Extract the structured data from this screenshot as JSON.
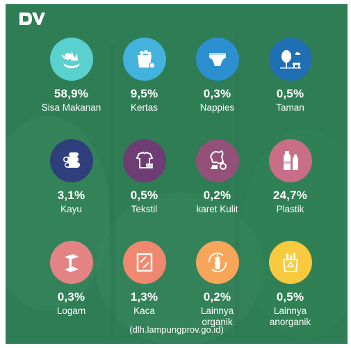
{
  "source_text": "(dlh.lampungprov.go.id)",
  "items": [
    {
      "percent": "58,9%",
      "label": "Sisa Makanan",
      "color": "#5ad0cf",
      "icon": "food-waste-icon"
    },
    {
      "percent": "9,5%",
      "label": "Kertas",
      "color": "#43b2dd",
      "icon": "paper-icon"
    },
    {
      "percent": "0,3%",
      "label": "Nappies",
      "color": "#2b8fd0",
      "icon": "diaper-icon"
    },
    {
      "percent": "0,5%",
      "label": "Taman",
      "color": "#1f6fb3",
      "icon": "garden-icon"
    },
    {
      "percent": "3,1%",
      "label": "Kayu",
      "color": "#2f3f7c",
      "icon": "wood-icon"
    },
    {
      "percent": "0,5%",
      "label": "Tekstil",
      "color": "#6d3d73",
      "icon": "textile-icon"
    },
    {
      "percent": "0,2%",
      "label": "karet Kulit",
      "color": "#935078",
      "icon": "rubber-leather-icon"
    },
    {
      "percent": "24,7%",
      "label": "Plastik",
      "color": "#c86e87",
      "icon": "plastic-bottle-icon"
    },
    {
      "percent": "0,3%",
      "label": "Logam",
      "color": "#e38383",
      "icon": "metal-icon"
    },
    {
      "percent": "1,3%",
      "label": "Kaca",
      "color": "#f08870",
      "icon": "glass-icon"
    },
    {
      "percent": "0,2%",
      "label": "Lainnya organik",
      "color": "#f6a55a",
      "icon": "organic-other-icon"
    },
    {
      "percent": "0,5%",
      "label": "Lainnya anorganik",
      "color": "#f9c93f",
      "icon": "inorganic-other-icon"
    }
  ]
}
